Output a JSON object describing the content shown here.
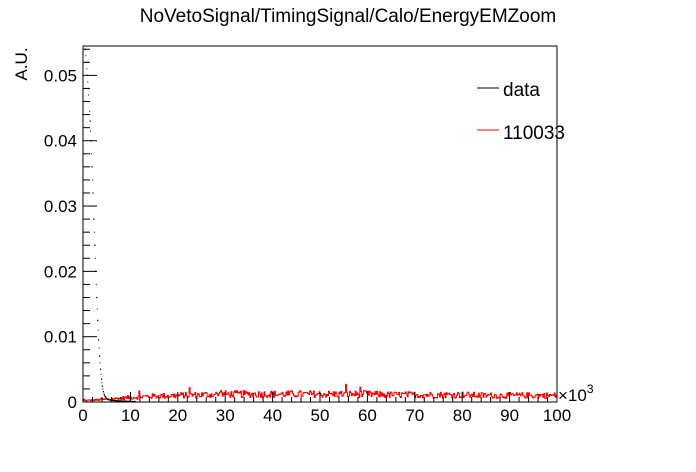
{
  "chart_data": {
    "type": "line",
    "title": "NoVetoSignal/TimingSignal/Calo/EnergyEMZoom",
    "xlabel": "",
    "ylabel": "A.U.",
    "x_multiplier_label": "×10",
    "x_multiplier_exponent": "3",
    "xlim": [
      0,
      100
    ],
    "ylim": [
      0,
      0.0545
    ],
    "x_ticks": [
      0,
      10,
      20,
      30,
      40,
      50,
      60,
      70,
      80,
      90,
      100
    ],
    "x_tick_labels": [
      "0",
      "10",
      "20",
      "30",
      "40",
      "50",
      "60",
      "70",
      "80",
      "90",
      "100"
    ],
    "y_ticks": [
      0,
      0.01,
      0.02,
      0.03,
      0.04,
      0.05
    ],
    "y_tick_labels": [
      "0",
      "0.01",
      "0.02",
      "0.03",
      "0.04",
      "0.05"
    ],
    "grid": false,
    "legend_position": "top-right",
    "series": [
      {
        "name": "data",
        "color": "#000000",
        "style": "points",
        "x": [
          0.5,
          0.7,
          0.9,
          1.1,
          1.3,
          1.5,
          1.7,
          1.9,
          2.1,
          2.3,
          2.5,
          2.7,
          2.9,
          3.1,
          3.3,
          3.5,
          3.7,
          3.9,
          4.1,
          4.3,
          4.5,
          4.7,
          4.9,
          5.1,
          5.4,
          5.8,
          6.3,
          7.0,
          8.0,
          9.0,
          10.0,
          11.0
        ],
        "values": [
          0.054,
          0.052,
          0.05,
          0.048,
          0.046,
          0.043,
          0.04,
          0.036,
          0.032,
          0.028,
          0.024,
          0.02,
          0.016,
          0.0125,
          0.0095,
          0.007,
          0.005,
          0.0035,
          0.0024,
          0.0016,
          0.0011,
          0.0008,
          0.0006,
          0.00045,
          0.00035,
          0.00028,
          0.00022,
          0.00018,
          0.00015,
          0.00012,
          0.0001,
          8e-05
        ]
      },
      {
        "name": "110033",
        "color": "#ff0000",
        "style": "histogram",
        "x": [
          0,
          5,
          10,
          15,
          20,
          25,
          30,
          35,
          40,
          45,
          50,
          55,
          60,
          65,
          70,
          75,
          80,
          85,
          90,
          95,
          100
        ],
        "values": [
          0.0002,
          0.0004,
          0.0007,
          0.0009,
          0.001,
          0.0011,
          0.0012,
          0.0012,
          0.0012,
          0.0012,
          0.0012,
          0.0012,
          0.0012,
          0.0011,
          0.0011,
          0.0011,
          0.0011,
          0.001,
          0.001,
          0.001,
          0.001
        ]
      }
    ]
  }
}
